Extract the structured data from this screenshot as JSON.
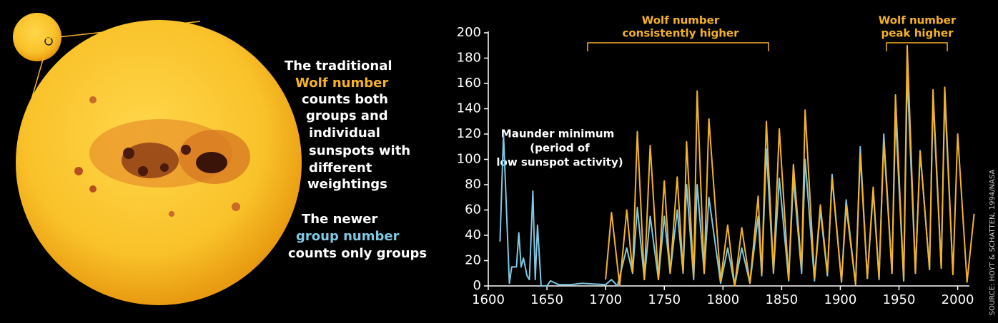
{
  "chart_data": {
    "type": "line",
    "intro": {
      "wolf_before": "The traditional",
      "wolf_after": [
        "counts both",
        "groups and",
        "individual",
        "sunspots with",
        "different",
        "weightings"
      ],
      "group_before": "The newer",
      "group_after": "counts only groups"
    },
    "annotations": [
      {
        "lines": [
          "Wolf number",
          "consistently higher"
        ]
      },
      {
        "lines": [
          "Wolf number",
          "peak higher"
        ]
      },
      {
        "lines": [
          "Maunder minimum",
          "(period of",
          "low sunspot activity)"
        ]
      }
    ],
    "source": "SOURCE: HOYT & SCHATTEN, 1994/NASA",
    "xlim": [
      1600,
      2010
    ],
    "xticks": [
      1600,
      1650,
      1700,
      1750,
      1800,
      1850,
      1900,
      1950,
      2000
    ],
    "ylim": [
      0,
      200
    ],
    "yticks": [
      0,
      20,
      40,
      60,
      80,
      100,
      120,
      140,
      160,
      180,
      200
    ],
    "grid": false,
    "series": [
      {
        "name": "Wolf number",
        "color": "#f5b324",
        "x": [
          1700,
          1705,
          1712,
          1718,
          1723,
          1727,
          1733,
          1738,
          1745,
          1750,
          1755,
          1761,
          1766,
          1769,
          1775,
          1778,
          1784,
          1788,
          1798,
          1804,
          1810,
          1816,
          1823,
          1830,
          1833,
          1837,
          1843,
          1848,
          1856,
          1860,
          1867,
          1870,
          1878,
          1883,
          1889,
          1893,
          1901,
          1905,
          1913,
          1917,
          1923,
          1928,
          1933,
          1937,
          1944,
          1947,
          1954,
          1957,
          1964,
          1968,
          1976,
          1979,
          1986,
          1989,
          1996,
          2000,
          2008,
          2014
        ],
        "values": [
          5,
          58,
          0,
          60,
          11,
          122,
          5,
          111,
          5,
          83,
          10,
          86,
          11,
          114,
          7,
          154,
          10,
          132,
          4,
          48,
          0,
          46,
          2,
          71,
          9,
          130,
          11,
          124,
          5,
          96,
          14,
          139,
          6,
          64,
          10,
          85,
          3,
          63,
          1,
          104,
          6,
          78,
          6,
          114,
          10,
          151,
          4,
          190,
          10,
          106,
          13,
          155,
          14,
          157,
          9,
          120,
          3,
          57
        ]
      },
      {
        "name": "group number",
        "color": "#7ec8e3",
        "x": [
          1610,
          1613,
          1618,
          1620,
          1624,
          1626,
          1628,
          1630,
          1633,
          1635,
          1638,
          1640,
          1642,
          1645,
          1650,
          1653,
          1660,
          1670,
          1680,
          1700,
          1705,
          1710,
          1718,
          1723,
          1727,
          1733,
          1738,
          1745,
          1750,
          1755,
          1761,
          1766,
          1769,
          1775,
          1778,
          1784,
          1788,
          1798,
          1804,
          1810,
          1816,
          1823,
          1830,
          1833,
          1837,
          1843,
          1848,
          1856,
          1860,
          1867,
          1870,
          1878,
          1883,
          1889,
          1893,
          1901,
          1905,
          1913,
          1917,
          1923,
          1928,
          1933,
          1937,
          1944,
          1947,
          1954,
          1957,
          1964,
          1968,
          1976,
          1979,
          1986,
          1989,
          1996
        ],
        "values": [
          35,
          120,
          2,
          15,
          15,
          42,
          15,
          22,
          8,
          5,
          75,
          5,
          48,
          0,
          0,
          4,
          1,
          1,
          2,
          1,
          5,
          0,
          30,
          10,
          62,
          5,
          55,
          5,
          55,
          10,
          60,
          10,
          80,
          5,
          80,
          10,
          70,
          2,
          30,
          0,
          30,
          2,
          55,
          8,
          108,
          10,
          85,
          4,
          85,
          10,
          100,
          4,
          60,
          8,
          88,
          3,
          68,
          1,
          110,
          6,
          75,
          5,
          120,
          10,
          135,
          4,
          168,
          10,
          107,
          13,
          148,
          14,
          150,
          9
        ]
      }
    ]
  }
}
